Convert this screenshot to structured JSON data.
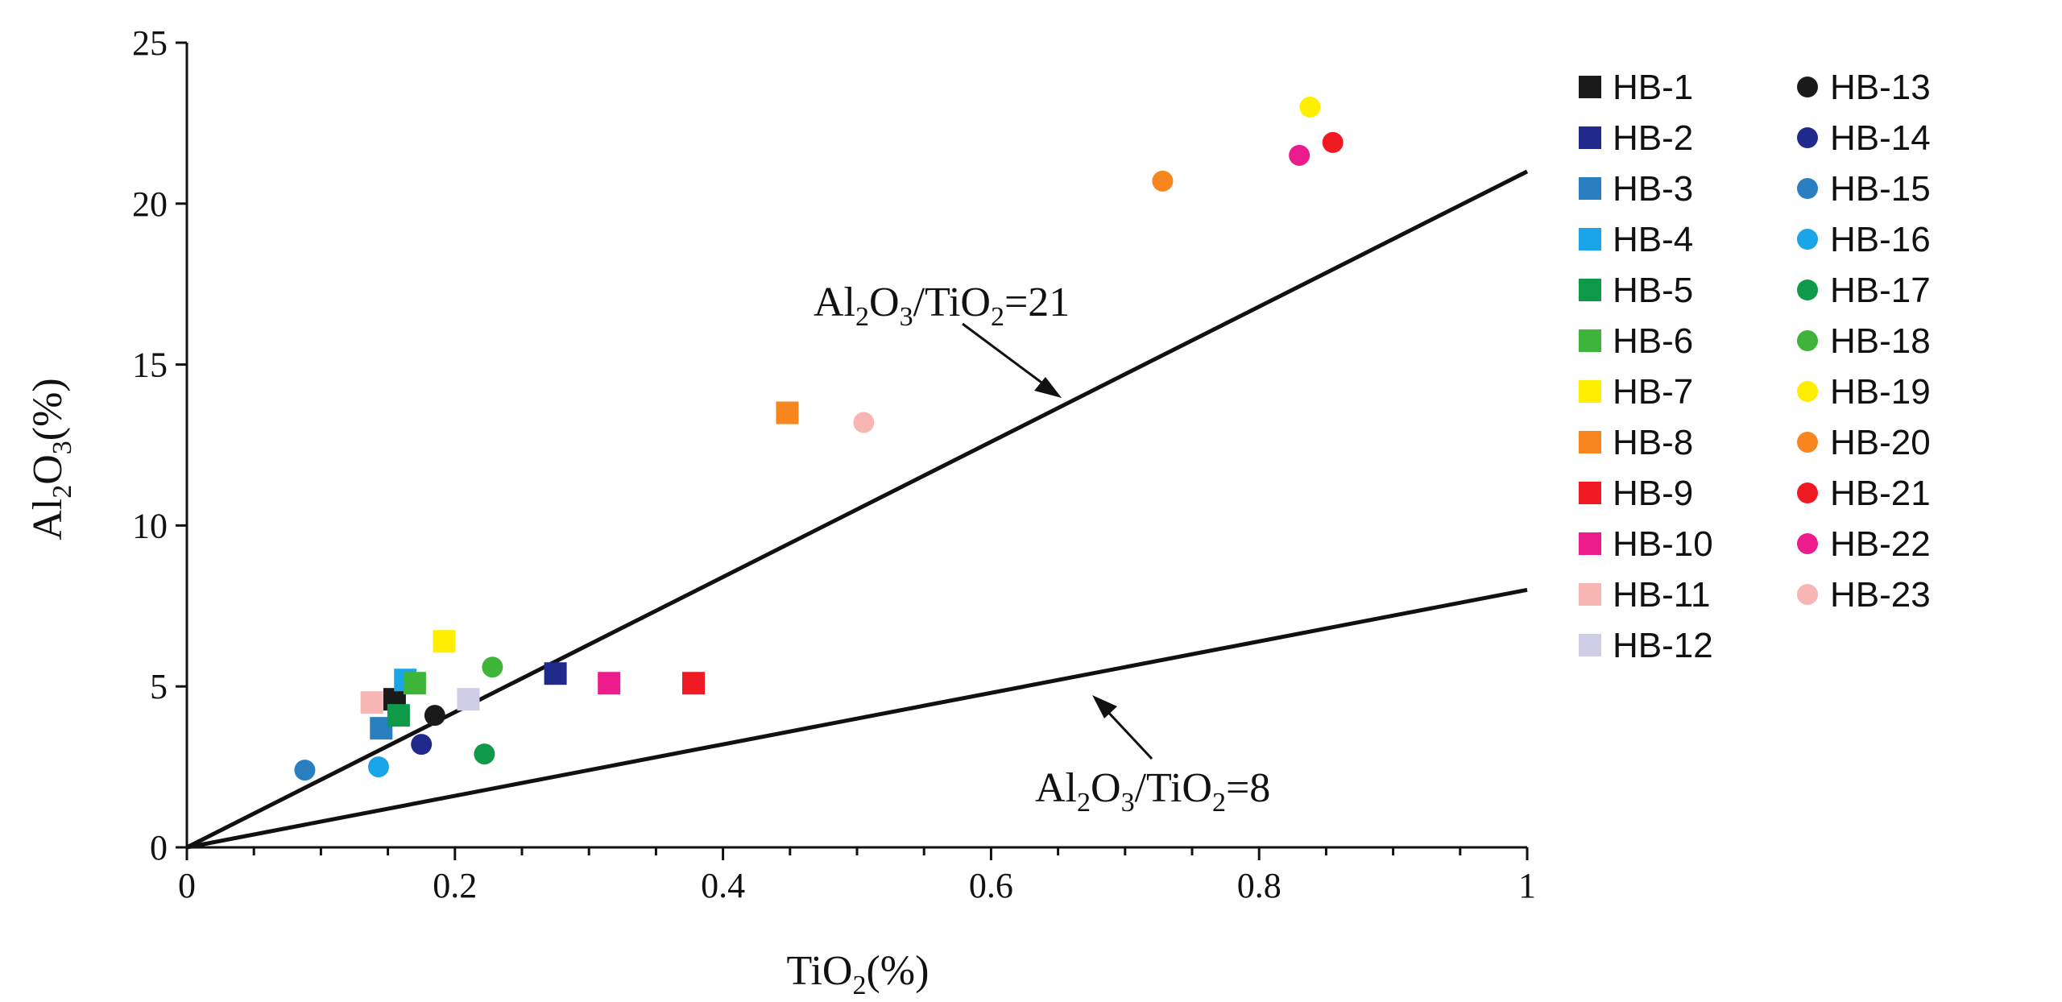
{
  "chart_data": {
    "type": "scatter",
    "xlabel": {
      "main": "TiO",
      "sub": "2",
      "tail": "(%)"
    },
    "ylabel": {
      "head": "Al",
      "sub1": "2",
      "mid": "O",
      "sub2": "3",
      "tail": "(%)"
    },
    "xlim": [
      0,
      1
    ],
    "ylim": [
      0,
      25
    ],
    "x_ticks": [
      0,
      0.2,
      0.4,
      0.6,
      0.8,
      1
    ],
    "x_tick_labels": [
      "0",
      "0.2",
      "0.4",
      "0.6",
      "0.8",
      "1"
    ],
    "y_ticks": [
      0,
      5,
      10,
      15,
      20,
      25
    ],
    "y_tick_labels": [
      "0",
      "5",
      "10",
      "15",
      "20",
      "25"
    ],
    "ratio_lines": [
      {
        "ratio": 21,
        "label": {
          "p1": "Al",
          "s1": "2",
          "p2": "O",
          "s2": "3",
          "p3": "/TiO",
          "s3": "2",
          "p4": "=21"
        }
      },
      {
        "ratio": 8,
        "label": {
          "p1": "Al",
          "s1": "2",
          "p2": "O",
          "s2": "3",
          "p3": "/TiO",
          "s3": "2",
          "p4": "=8"
        }
      }
    ],
    "series": [
      {
        "name": "HB-1",
        "marker": "square",
        "color": "#1a1a1a",
        "x": 0.155,
        "y": 4.6
      },
      {
        "name": "HB-2",
        "marker": "square",
        "color": "#1f2a8c",
        "x": 0.275,
        "y": 5.4
      },
      {
        "name": "HB-3",
        "marker": "square",
        "color": "#2a7fc1",
        "x": 0.145,
        "y": 3.7
      },
      {
        "name": "HB-4",
        "marker": "square",
        "color": "#1aa5e8",
        "x": 0.163,
        "y": 5.2
      },
      {
        "name": "HB-5",
        "marker": "square",
        "color": "#0f9a4a",
        "x": 0.158,
        "y": 4.1
      },
      {
        "name": "HB-6",
        "marker": "square",
        "color": "#3fb43a",
        "x": 0.17,
        "y": 5.1
      },
      {
        "name": "HB-7",
        "marker": "square",
        "color": "#ffee00",
        "x": 0.192,
        "y": 6.4
      },
      {
        "name": "HB-8",
        "marker": "square",
        "color": "#f7861e",
        "x": 0.448,
        "y": 13.5
      },
      {
        "name": "HB-9",
        "marker": "square",
        "color": "#f01a23",
        "x": 0.378,
        "y": 5.1
      },
      {
        "name": "HB-10",
        "marker": "square",
        "color": "#ec1c8c",
        "x": 0.315,
        "y": 5.1
      },
      {
        "name": "HB-11",
        "marker": "square",
        "color": "#f7b6b4",
        "x": 0.138,
        "y": 4.5
      },
      {
        "name": "HB-12",
        "marker": "square",
        "color": "#d0cde6",
        "x": 0.21,
        "y": 4.6
      },
      {
        "name": "HB-13",
        "marker": "circle",
        "color": "#1a1a1a",
        "x": 0.185,
        "y": 4.1
      },
      {
        "name": "HB-14",
        "marker": "circle",
        "color": "#1f2a8c",
        "x": 0.175,
        "y": 3.2
      },
      {
        "name": "HB-15",
        "marker": "circle",
        "color": "#2a7fc1",
        "x": 0.088,
        "y": 2.4
      },
      {
        "name": "HB-16",
        "marker": "circle",
        "color": "#1aa5e8",
        "x": 0.143,
        "y": 2.5
      },
      {
        "name": "HB-17",
        "marker": "circle",
        "color": "#0f9a4a",
        "x": 0.222,
        "y": 2.9
      },
      {
        "name": "HB-18",
        "marker": "circle",
        "color": "#3fb43a",
        "x": 0.228,
        "y": 5.6
      },
      {
        "name": "HB-19",
        "marker": "circle",
        "color": "#ffee00",
        "x": 0.838,
        "y": 23.0
      },
      {
        "name": "HB-20",
        "marker": "circle",
        "color": "#f7861e",
        "x": 0.728,
        "y": 20.7
      },
      {
        "name": "HB-21",
        "marker": "circle",
        "color": "#f01a23",
        "x": 0.855,
        "y": 21.9
      },
      {
        "name": "HB-22",
        "marker": "circle",
        "color": "#ec1c8c",
        "x": 0.83,
        "y": 21.5
      },
      {
        "name": "HB-23",
        "marker": "circle",
        "color": "#f7b6b4",
        "x": 0.505,
        "y": 13.2
      }
    ],
    "legend_placement": "right"
  }
}
